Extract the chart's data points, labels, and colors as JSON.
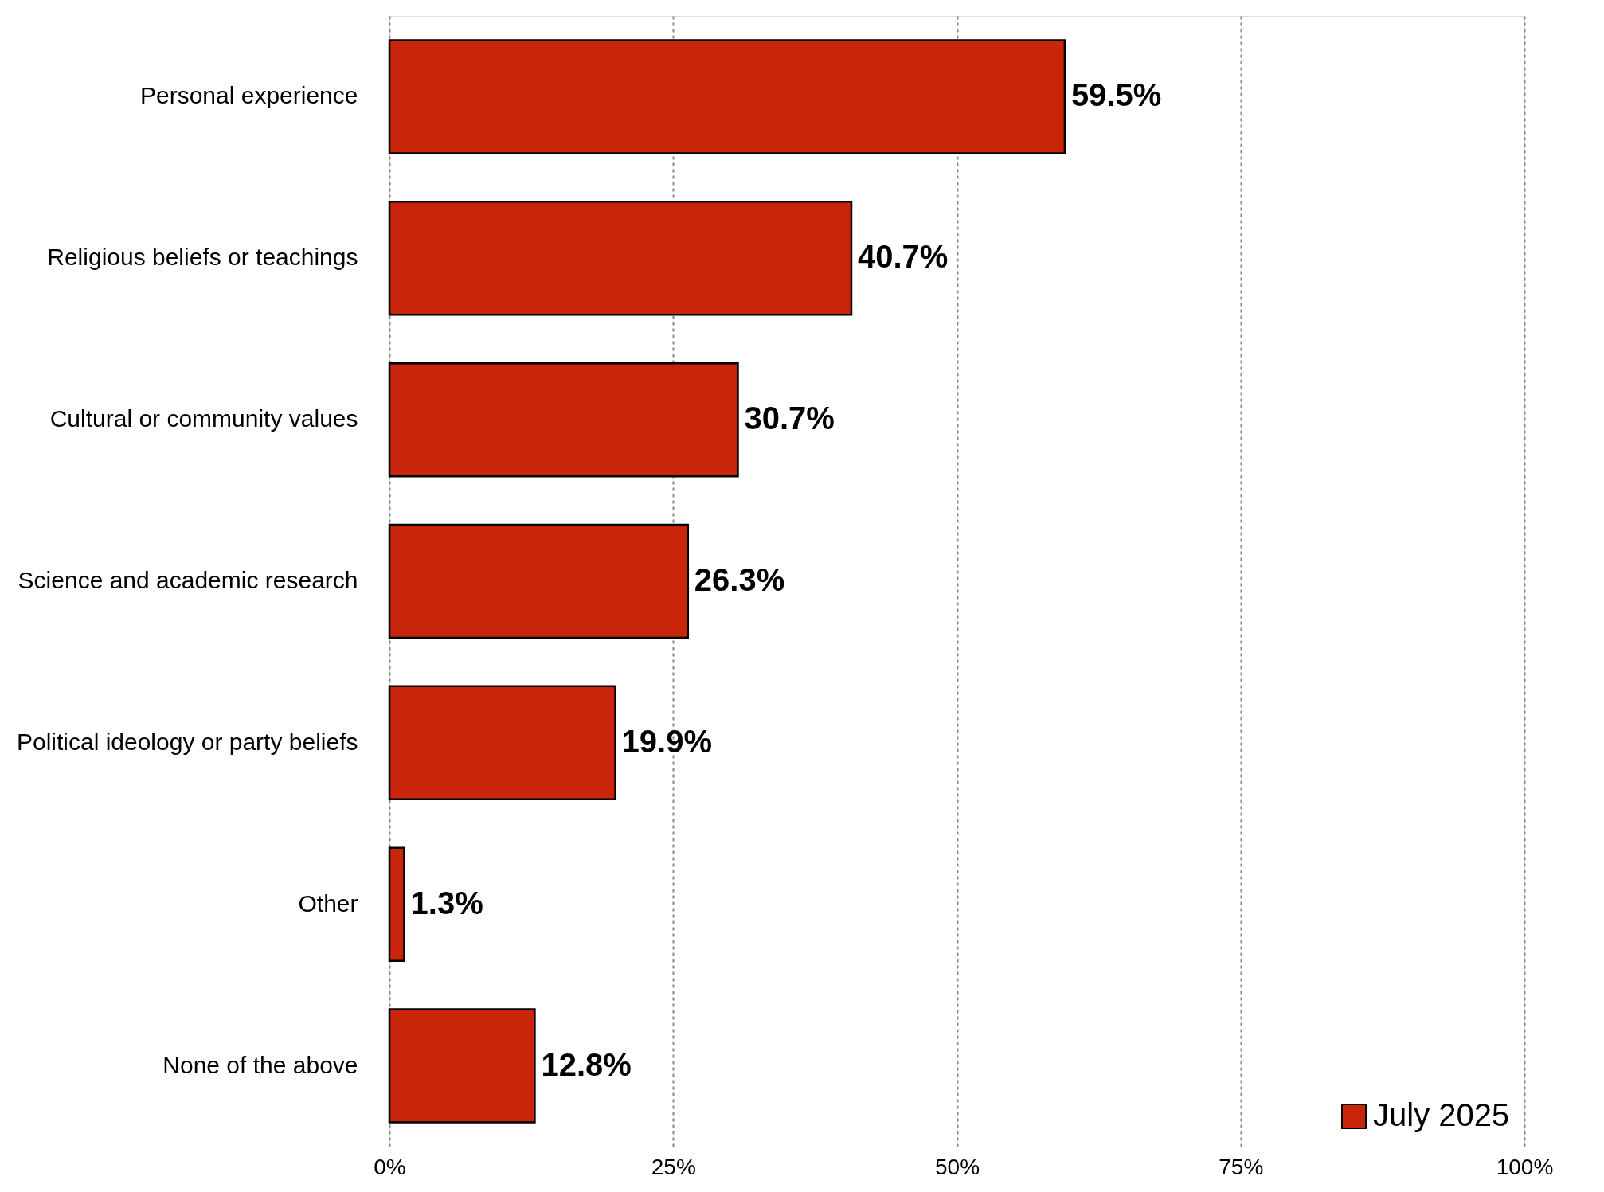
{
  "chart_data": {
    "type": "bar",
    "orientation": "horizontal",
    "categories": [
      "Personal experience",
      "Religious beliefs or teachings",
      "Cultural or community values",
      "Science and academic research",
      "Political ideology or party beliefs",
      "Other",
      "None of the above"
    ],
    "series": [
      {
        "name": "July 2025",
        "color": "#c8250a",
        "values": [
          59.5,
          40.7,
          30.7,
          26.3,
          19.9,
          1.3,
          12.8
        ],
        "value_labels": [
          "59.5%",
          "40.7%",
          "30.7%",
          "26.3%",
          "19.9%",
          "1.3%",
          "12.8%"
        ]
      }
    ],
    "xlim": [
      0,
      100
    ],
    "xticks": [
      {
        "value": 0,
        "label": "0%"
      },
      {
        "value": 25,
        "label": "25%"
      },
      {
        "value": 50,
        "label": "50%"
      },
      {
        "value": 75,
        "label": "75%"
      },
      {
        "value": 100,
        "label": "100%"
      }
    ],
    "grid": "x",
    "legend": "bottom right"
  }
}
